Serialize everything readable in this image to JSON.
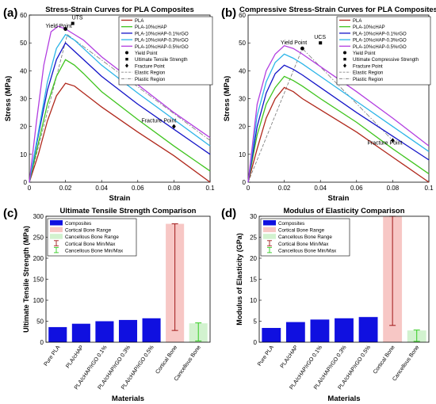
{
  "panels": [
    {
      "letter": "(a)"
    },
    {
      "letter": "(b)"
    },
    {
      "letter": "(c)"
    },
    {
      "letter": "(d)"
    }
  ],
  "chart_data": [
    {
      "type": "line",
      "title": "Stress-Strain Curves for PLA Composites",
      "xlabel": "Strain",
      "ylabel": "Stress (MPa)",
      "xlim": [
        0,
        0.1
      ],
      "ylim": [
        0,
        60
      ],
      "xticks": [
        0,
        0.02,
        0.04,
        0.06,
        0.08,
        0.1
      ],
      "xtick_labels": [
        "0",
        "0.02",
        "0.04",
        "0.06",
        "0.08",
        "0.1"
      ],
      "yticks": [
        0,
        10,
        20,
        30,
        40,
        50,
        60
      ],
      "grid": false,
      "legend_position": "top-right",
      "series": [
        {
          "name": "PLA",
          "color": "#b0281c",
          "x": [
            0,
            0.005,
            0.01,
            0.015,
            0.02,
            0.025,
            0.03,
            0.04,
            0.06,
            0.08,
            0.1
          ],
          "y": [
            0,
            10,
            22,
            31,
            35.5,
            34.5,
            32,
            27,
            18,
            9.5,
            0
          ]
        },
        {
          "name": "PLA-10%cHAP",
          "color": "#3fc41e",
          "x": [
            0,
            0.005,
            0.01,
            0.015,
            0.02,
            0.025,
            0.03,
            0.04,
            0.06,
            0.08,
            0.1
          ],
          "y": [
            0,
            14,
            28,
            38,
            44,
            42,
            39,
            32.5,
            22.5,
            13,
            4
          ]
        },
        {
          "name": "PLA-10%cHAP-0.1%rGO",
          "color": "#1414c8",
          "x": [
            0,
            0.005,
            0.01,
            0.015,
            0.02,
            0.025,
            0.03,
            0.04,
            0.06,
            0.08,
            0.1
          ],
          "y": [
            0,
            17,
            33,
            44,
            50,
            47,
            44,
            38,
            28,
            19,
            10
          ]
        },
        {
          "name": "PLA-10%cHAP-0.3%rGO",
          "color": "#2cb5e8",
          "x": [
            0,
            0.005,
            0.01,
            0.015,
            0.02,
            0.025,
            0.03,
            0.04,
            0.06,
            0.08,
            0.1
          ],
          "y": [
            0,
            18,
            36,
            48,
            53,
            51,
            48,
            42,
            32,
            22.5,
            13
          ]
        },
        {
          "name": "PLA-10%cHAP-0.5%rGO",
          "color": "#b23ee0",
          "x": [
            0,
            0.004,
            0.008,
            0.012,
            0.016,
            0.02,
            0.025,
            0.03,
            0.04,
            0.06,
            0.08,
            0.1
          ],
          "y": [
            0,
            22,
            42,
            54,
            56,
            55,
            53,
            51,
            45,
            35,
            25,
            16
          ]
        }
      ],
      "reference_lines": [
        {
          "name": "Elastic Region",
          "style": "dashed",
          "color": "#777777",
          "x": [
            0,
            0.021
          ],
          "y": [
            0,
            53
          ]
        },
        {
          "name": "Plastic Region",
          "style": "dashdot",
          "color": "#777777",
          "x": [
            0.021,
            0.1
          ],
          "y": [
            53,
            15
          ]
        }
      ],
      "markers": [
        {
          "name": "Yield Point",
          "symbol": "circle",
          "x": 0.02,
          "y": 55
        },
        {
          "name": "Ultimate Tensile Strength",
          "symbol": "square",
          "x": 0.024,
          "y": 57
        },
        {
          "name": "Fracture Point",
          "symbol": "diamond",
          "x": 0.08,
          "y": 20
        }
      ],
      "annotations": [
        {
          "text": "UTS",
          "x": 0.0235,
          "y": 58.5
        },
        {
          "text": "Yield Point",
          "x": 0.009,
          "y": 55.5
        },
        {
          "text": "Fracture Point",
          "x": 0.062,
          "y": 21.5
        }
      ]
    },
    {
      "type": "line",
      "title": "Compressive Stress-Strain Curves for PLA Composites",
      "xlabel": "Strain",
      "ylabel": "Stress (MPa)",
      "xlim": [
        0,
        0.1
      ],
      "ylim": [
        0,
        60
      ],
      "xticks": [
        0,
        0.02,
        0.04,
        0.06,
        0.08,
        0.1
      ],
      "xtick_labels": [
        "0",
        "0.02",
        "0.04",
        "0.06",
        "0.08",
        "0.1"
      ],
      "yticks": [
        0,
        10,
        20,
        30,
        40,
        50,
        60
      ],
      "grid": false,
      "legend_position": "top-right",
      "series": [
        {
          "name": "PLA",
          "color": "#b0281c",
          "x": [
            0,
            0.005,
            0.01,
            0.015,
            0.02,
            0.025,
            0.03,
            0.04,
            0.06,
            0.08,
            0.1
          ],
          "y": [
            0,
            12,
            23,
            30,
            34,
            32.5,
            30,
            26,
            18,
            9,
            0
          ]
        },
        {
          "name": "PLA-10%cHAP",
          "color": "#3fc41e",
          "x": [
            0,
            0.005,
            0.01,
            0.015,
            0.02,
            0.025,
            0.03,
            0.04,
            0.06,
            0.08,
            0.1
          ],
          "y": [
            0,
            17,
            28,
            34,
            38,
            36.5,
            34.5,
            30,
            21.5,
            12,
            3
          ]
        },
        {
          "name": "PLA-10%cHAP-0.1%rGO",
          "color": "#1414c8",
          "x": [
            0,
            0.005,
            0.01,
            0.015,
            0.02,
            0.025,
            0.03,
            0.04,
            0.06,
            0.08,
            0.1
          ],
          "y": [
            0,
            20,
            32,
            39,
            42,
            40.5,
            38.5,
            34,
            25,
            16.5,
            8
          ]
        },
        {
          "name": "PLA-10%cHAP-0.3%rGO",
          "color": "#2cb5e8",
          "x": [
            0,
            0.005,
            0.01,
            0.015,
            0.02,
            0.025,
            0.03,
            0.04,
            0.06,
            0.08,
            0.1
          ],
          "y": [
            0,
            24,
            36,
            43,
            46,
            44.5,
            42.5,
            38,
            29,
            20,
            11
          ]
        },
        {
          "name": "PLA-10%cHAP-0.5%rGO",
          "color": "#b23ee0",
          "x": [
            0,
            0.005,
            0.01,
            0.015,
            0.02,
            0.025,
            0.03,
            0.04,
            0.06,
            0.08,
            0.1
          ],
          "y": [
            0,
            28,
            40,
            46,
            49,
            48,
            46,
            41.5,
            32.5,
            23,
            13
          ]
        }
      ],
      "reference_lines": [
        {
          "name": "Elastic Region",
          "style": "dashed",
          "color": "#777777",
          "x": [
            0,
            0.03
          ],
          "y": [
            0,
            48
          ]
        },
        {
          "name": "Plastic Region",
          "style": "dashdot",
          "color": "#777777",
          "x": [
            0.03,
            0.08
          ],
          "y": [
            48,
            15
          ]
        }
      ],
      "markers": [
        {
          "name": "Yield Point",
          "symbol": "circle",
          "x": 0.03,
          "y": 48
        },
        {
          "name": "Ultimate Compressive Strength",
          "symbol": "square",
          "x": 0.04,
          "y": 50
        },
        {
          "name": "Fracture Point",
          "symbol": "diamond",
          "x": 0.08,
          "y": 15
        }
      ],
      "annotations": [
        {
          "text": "UCS",
          "x": 0.0365,
          "y": 51.5
        },
        {
          "text": "Yield Point",
          "x": 0.018,
          "y": 49.5
        },
        {
          "text": "Fracture Point",
          "x": 0.066,
          "y": 13.5
        }
      ]
    },
    {
      "type": "bar",
      "title": "Ultimate Tensile Strength Comparison",
      "xlabel": "Materials",
      "ylabel": "Ultimate Tensile Strength (MPa)",
      "ylim": [
        0,
        300
      ],
      "yticks": [
        0,
        50,
        100,
        150,
        200,
        250,
        300
      ],
      "categories": [
        "Pure PLA",
        "PLA/cHAP",
        "PLA/cHAP/rGO 0.1%",
        "PLA/cHAP/rGO 0.3%",
        "PLA/cHAP/rGO 0.5%",
        "Cortical Bone",
        "Cancellous Bone"
      ],
      "grid": false,
      "legend_position": "top-left",
      "legend": [
        "Composites",
        "Cortical Bone Range",
        "Cancellous Bone Range",
        "Cortical Bone Min/Max",
        "Cancellous Bone Min/Max"
      ],
      "series": [
        {
          "name": "Composites",
          "color": "#1010e0",
          "values": [
            36,
            44,
            50,
            53,
            57,
            null,
            null
          ]
        }
      ],
      "ranges": [
        {
          "name": "Cortical Bone Range",
          "category": "Cortical Bone",
          "color": "#f7c7c5",
          "value": 282,
          "min": 28,
          "max": 282,
          "whisker_color": "#a01818"
        },
        {
          "name": "Cancellous Bone Range",
          "category": "Cancellous Bone",
          "color": "#d2f2cf",
          "value": 45,
          "min": 3,
          "max": 46,
          "whisker_color": "#33cc22"
        }
      ]
    },
    {
      "type": "bar",
      "title": "Modulus of Elasticity Comparison",
      "xlabel": "Materials",
      "ylabel": "Modulus of Elasticity (GPa)",
      "ylim": [
        0,
        30
      ],
      "yticks": [
        0,
        5,
        10,
        15,
        20,
        25,
        30
      ],
      "categories": [
        "Pure PLA",
        "PLA/cHAP",
        "PLA/cHAP/rGO 0.1%",
        "PLA/cHAP/rGO 0.3%",
        "PLA/cHAP/rGO 0.5%",
        "Cortical Bone",
        "Cancellous Bone"
      ],
      "grid": false,
      "legend_position": "top-left",
      "legend": [
        "Composites",
        "Cortical Bone Range",
        "Cancellous Bone Range",
        "Cortical Bone Min/Max",
        "Cancellous Bone Min/Max"
      ],
      "series": [
        {
          "name": "Composites",
          "color": "#1010e0",
          "values": [
            3.4,
            4.8,
            5.4,
            5.7,
            6.0,
            null,
            null
          ]
        }
      ],
      "ranges": [
        {
          "name": "Cortical Bone Range",
          "category": "Cortical Bone",
          "color": "#f7c7c5",
          "value": 30,
          "min": 4,
          "max": 30,
          "whisker_color": "#a01818"
        },
        {
          "name": "Cancellous Bone Range",
          "category": "Cancellous Bone",
          "color": "#d2f2cf",
          "value": 2.8,
          "min": 0.2,
          "max": 2.9,
          "whisker_color": "#33cc22"
        }
      ]
    }
  ]
}
